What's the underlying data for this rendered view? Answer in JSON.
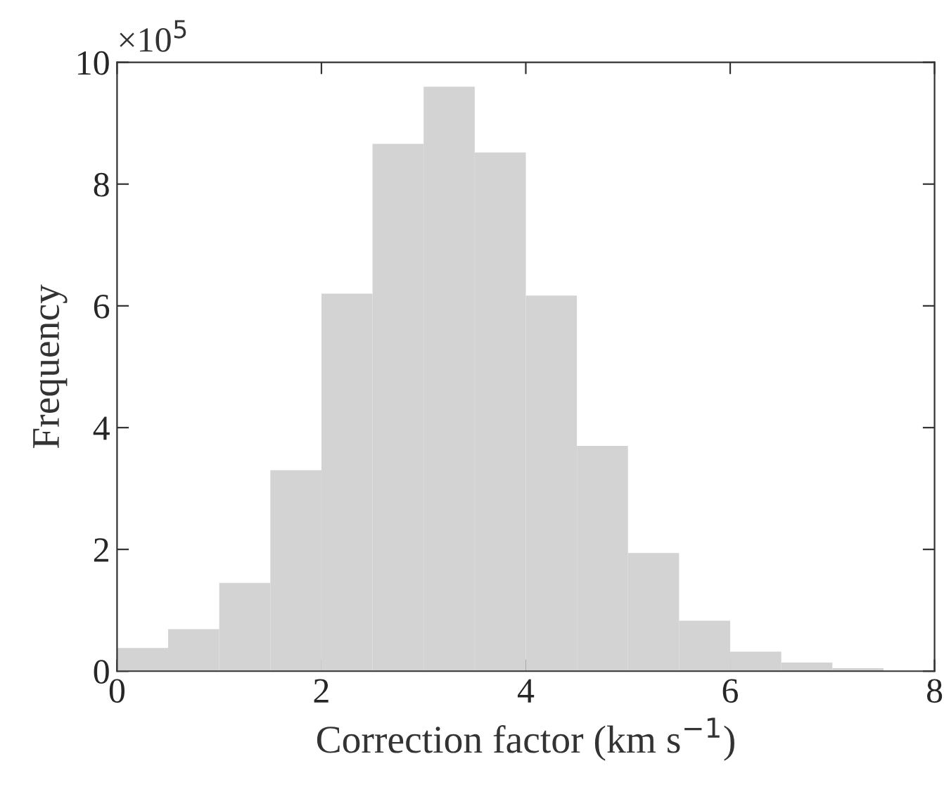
{
  "chart_data": {
    "type": "histogram",
    "xlabel": "Correction factor (km s$^{−1}$)",
    "ylabel": "Frequency",
    "annotations": [
      "×10$^{5}$"
    ],
    "bins": [
      0,
      0.5,
      1,
      1.5,
      2,
      2.5,
      3,
      3.5,
      4,
      4.5,
      5,
      5.5,
      6,
      6.5,
      7,
      7.5,
      8
    ],
    "values": [
      0.38,
      0.69,
      1.45,
      3.3,
      6.2,
      8.66,
      9.6,
      8.52,
      6.17,
      3.7,
      1.94,
      0.83,
      0.32,
      0.14,
      0.05,
      null
    ],
    "color": "#d3d3d3",
    "xlim": [
      0,
      8
    ],
    "xticks": [
      0,
      2,
      4,
      6,
      8
    ],
    "ylim": [
      0,
      10
    ],
    "yticks": [
      0,
      2,
      4,
      6,
      8,
      10
    ],
    "grid": false
  }
}
